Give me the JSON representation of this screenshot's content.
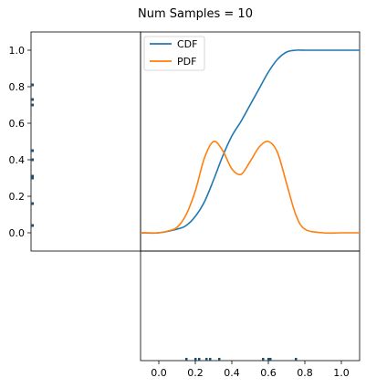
{
  "figure": {
    "title": "Num Samples = 10"
  },
  "chart_data": [
    {
      "panel": "main",
      "type": "line",
      "xlim": [
        -0.1,
        1.1
      ],
      "ylim": [
        -0.1,
        1.1
      ],
      "x_ticks": [
        0.0,
        0.2,
        0.4,
        0.6,
        0.8,
        1.0
      ],
      "x_tick_labels": [
        "0.0",
        "0.2",
        "0.4",
        "0.6",
        "0.8",
        "1.0"
      ],
      "y_ticks": [
        0.0,
        0.2,
        0.4,
        0.6,
        0.8,
        1.0
      ],
      "y_tick_labels": [
        "0.0",
        "0.2",
        "0.4",
        "0.6",
        "0.8",
        "1.0"
      ],
      "grid": false,
      "legend_position": "top-left",
      "series": [
        {
          "name": "CDF",
          "color": "#1f77b4",
          "x": [
            -0.1,
            0.0,
            0.1,
            0.15,
            0.2,
            0.25,
            0.3,
            0.35,
            0.4,
            0.45,
            0.5,
            0.55,
            0.6,
            0.65,
            0.7,
            0.75,
            0.8,
            0.85,
            0.9,
            1.0,
            1.1
          ],
          "values": [
            0.0,
            0.0,
            0.02,
            0.04,
            0.09,
            0.17,
            0.29,
            0.42,
            0.53,
            0.61,
            0.7,
            0.79,
            0.88,
            0.95,
            0.99,
            1.0,
            1.0,
            1.0,
            1.0,
            1.0,
            1.0
          ]
        },
        {
          "name": "PDF",
          "color": "#ff7f0e",
          "x": [
            -0.1,
            0.0,
            0.05,
            0.1,
            0.15,
            0.2,
            0.25,
            0.3,
            0.35,
            0.4,
            0.45,
            0.5,
            0.55,
            0.6,
            0.65,
            0.7,
            0.75,
            0.8,
            0.9,
            1.0,
            1.1
          ],
          "values": [
            0.0,
            0.0,
            0.01,
            0.03,
            0.1,
            0.23,
            0.41,
            0.5,
            0.45,
            0.35,
            0.32,
            0.39,
            0.47,
            0.5,
            0.44,
            0.27,
            0.1,
            0.02,
            0.0,
            0.0,
            0.0
          ]
        }
      ]
    },
    {
      "panel": "left-marginal",
      "type": "scatter",
      "orientation": "vertical",
      "color": "#1f4e6e",
      "y_values": [
        0.04,
        0.16,
        0.3,
        0.31,
        0.4,
        0.45,
        0.7,
        0.73,
        0.81,
        0.81
      ]
    },
    {
      "panel": "bottom-marginal",
      "type": "scatter",
      "orientation": "horizontal",
      "color": "#1f4e6e",
      "x_values": [
        0.15,
        0.2,
        0.22,
        0.26,
        0.28,
        0.33,
        0.57,
        0.6,
        0.61,
        0.75
      ]
    }
  ]
}
